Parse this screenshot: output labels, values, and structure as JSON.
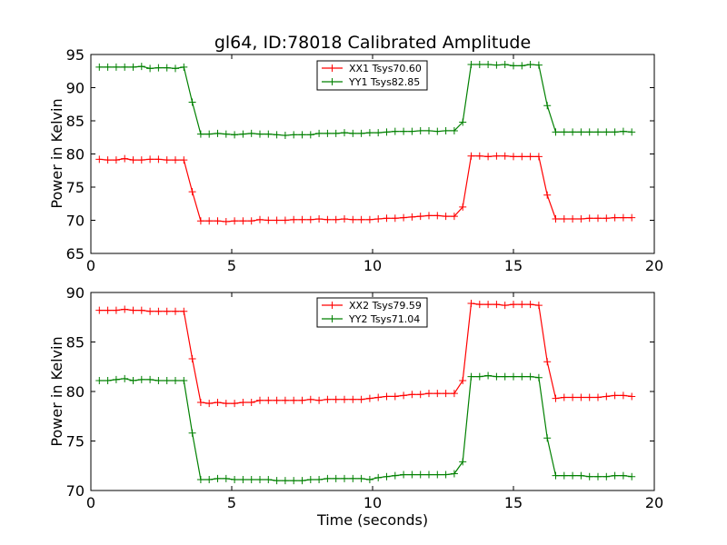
{
  "chart_data": [
    {
      "type": "line",
      "title": "gl64, ID:78018 Calibrated Amplitude",
      "xlabel": "",
      "ylabel": "Power in Kelvin",
      "xlim": [
        0,
        20
      ],
      "ylim": [
        65,
        95
      ],
      "xticks": [
        "0",
        "5",
        "10",
        "15",
        "20"
      ],
      "yticks": [
        "65",
        "70",
        "75",
        "80",
        "85",
        "90",
        "95"
      ],
      "grid": false,
      "legend_position": "top-center",
      "x": [
        0.3,
        0.6,
        0.9,
        1.2,
        1.5,
        1.8,
        2.1,
        2.4,
        2.7,
        3.0,
        3.3,
        3.6,
        3.9,
        4.2,
        4.5,
        4.8,
        5.1,
        5.4,
        5.7,
        6.0,
        6.3,
        6.6,
        6.9,
        7.2,
        7.5,
        7.8,
        8.1,
        8.4,
        8.7,
        9.0,
        9.3,
        9.6,
        9.9,
        10.2,
        10.5,
        10.8,
        11.1,
        11.4,
        11.7,
        12.0,
        12.3,
        12.6,
        12.9,
        13.2,
        13.5,
        13.8,
        14.1,
        14.4,
        14.7,
        15.0,
        15.3,
        15.6,
        15.9,
        16.2,
        16.5,
        16.8,
        17.1,
        17.4,
        17.7,
        18.0,
        18.3,
        18.6,
        18.9,
        19.2
      ],
      "series": [
        {
          "name": "XX1 Tsys70.60",
          "color": "#ff0000",
          "values": [
            79.2,
            79.1,
            79.1,
            79.3,
            79.1,
            79.1,
            79.2,
            79.2,
            79.1,
            79.1,
            79.1,
            74.3,
            69.9,
            69.9,
            69.9,
            69.8,
            69.9,
            69.9,
            69.9,
            70.1,
            70.0,
            70.0,
            70.0,
            70.1,
            70.1,
            70.1,
            70.2,
            70.1,
            70.1,
            70.2,
            70.1,
            70.1,
            70.1,
            70.2,
            70.3,
            70.3,
            70.4,
            70.5,
            70.6,
            70.7,
            70.7,
            70.6,
            70.6,
            72.0,
            79.7,
            79.7,
            79.6,
            79.7,
            79.7,
            79.6,
            79.6,
            79.6,
            79.6,
            73.8,
            70.2,
            70.2,
            70.2,
            70.2,
            70.3,
            70.3,
            70.3,
            70.4,
            70.4,
            70.4
          ]
        },
        {
          "name": "YY1 Tsys82.85",
          "color": "#008000",
          "values": [
            93.1,
            93.1,
            93.1,
            93.1,
            93.1,
            93.2,
            92.9,
            93.0,
            93.0,
            92.9,
            93.1,
            87.8,
            83.0,
            83.0,
            83.1,
            83.0,
            82.9,
            83.0,
            83.1,
            83.0,
            83.0,
            82.9,
            82.8,
            82.9,
            82.9,
            82.9,
            83.1,
            83.1,
            83.1,
            83.2,
            83.1,
            83.1,
            83.2,
            83.2,
            83.3,
            83.4,
            83.4,
            83.4,
            83.5,
            83.5,
            83.4,
            83.5,
            83.5,
            84.8,
            93.5,
            93.5,
            93.5,
            93.4,
            93.5,
            93.3,
            93.3,
            93.5,
            93.4,
            87.3,
            83.3,
            83.3,
            83.3,
            83.3,
            83.3,
            83.3,
            83.3,
            83.3,
            83.4,
            83.3
          ]
        }
      ]
    },
    {
      "type": "line",
      "title": "",
      "xlabel": "Time (seconds)",
      "ylabel": "Power in Kelvin",
      "xlim": [
        0,
        20
      ],
      "ylim": [
        70,
        90
      ],
      "xticks": [
        "0",
        "5",
        "10",
        "15",
        "20"
      ],
      "yticks": [
        "70",
        "75",
        "80",
        "85",
        "90"
      ],
      "grid": false,
      "legend_position": "top-center",
      "x": [
        0.3,
        0.6,
        0.9,
        1.2,
        1.5,
        1.8,
        2.1,
        2.4,
        2.7,
        3.0,
        3.3,
        3.6,
        3.9,
        4.2,
        4.5,
        4.8,
        5.1,
        5.4,
        5.7,
        6.0,
        6.3,
        6.6,
        6.9,
        7.2,
        7.5,
        7.8,
        8.1,
        8.4,
        8.7,
        9.0,
        9.3,
        9.6,
        9.9,
        10.2,
        10.5,
        10.8,
        11.1,
        11.4,
        11.7,
        12.0,
        12.3,
        12.6,
        12.9,
        13.2,
        13.5,
        13.8,
        14.1,
        14.4,
        14.7,
        15.0,
        15.3,
        15.6,
        15.9,
        16.2,
        16.5,
        16.8,
        17.1,
        17.4,
        17.7,
        18.0,
        18.3,
        18.6,
        18.9,
        19.2
      ],
      "series": [
        {
          "name": "XX2 Tsys79.59",
          "color": "#ff0000",
          "values": [
            88.2,
            88.2,
            88.2,
            88.3,
            88.2,
            88.2,
            88.1,
            88.1,
            88.1,
            88.1,
            88.1,
            83.3,
            78.9,
            78.8,
            78.9,
            78.8,
            78.8,
            78.9,
            78.9,
            79.1,
            79.1,
            79.1,
            79.1,
            79.1,
            79.1,
            79.2,
            79.1,
            79.2,
            79.2,
            79.2,
            79.2,
            79.2,
            79.3,
            79.4,
            79.5,
            79.5,
            79.6,
            79.7,
            79.7,
            79.8,
            79.8,
            79.8,
            79.8,
            81.1,
            88.9,
            88.8,
            88.8,
            88.8,
            88.7,
            88.8,
            88.8,
            88.8,
            88.7,
            83.0,
            79.3,
            79.4,
            79.4,
            79.4,
            79.4,
            79.4,
            79.5,
            79.6,
            79.6,
            79.5
          ]
        },
        {
          "name": "YY2 Tsys71.04",
          "color": "#008000",
          "values": [
            81.1,
            81.1,
            81.2,
            81.3,
            81.1,
            81.2,
            81.2,
            81.1,
            81.1,
            81.1,
            81.1,
            75.8,
            71.1,
            71.1,
            71.2,
            71.2,
            71.1,
            71.1,
            71.1,
            71.1,
            71.1,
            71.0,
            71.0,
            71.0,
            71.0,
            71.1,
            71.1,
            71.2,
            71.2,
            71.2,
            71.2,
            71.2,
            71.1,
            71.3,
            71.4,
            71.5,
            71.6,
            71.6,
            71.6,
            71.6,
            71.6,
            71.6,
            71.7,
            72.9,
            81.5,
            81.5,
            81.6,
            81.5,
            81.5,
            81.5,
            81.5,
            81.5,
            81.4,
            75.3,
            71.5,
            71.5,
            71.5,
            71.5,
            71.4,
            71.4,
            71.4,
            71.5,
            71.5,
            71.4
          ]
        }
      ]
    }
  ]
}
